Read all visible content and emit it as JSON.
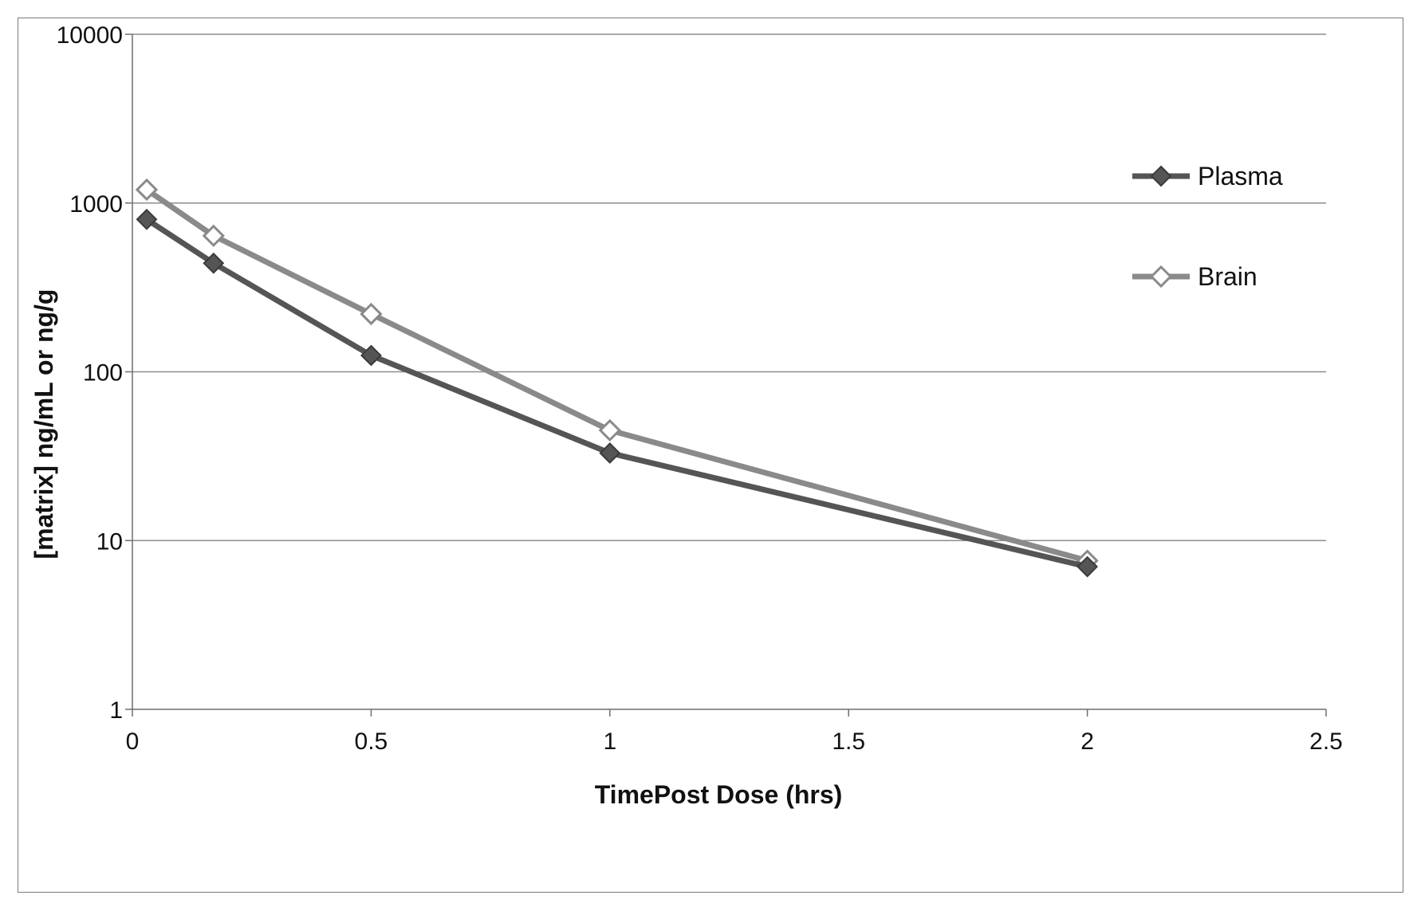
{
  "chart_data": {
    "type": "line",
    "title": "",
    "xlabel": "TimePost Dose (hrs)",
    "ylabel": "[matrix] ng/mL or ng/g",
    "xlim": [
      0,
      2.5
    ],
    "ylim": [
      1,
      10000
    ],
    "yscale": "log",
    "xticks": [
      0,
      0.5,
      1,
      1.5,
      2,
      2.5
    ],
    "xtick_labels": [
      "0",
      "0.5",
      "1",
      "1.5",
      "2",
      "2.5"
    ],
    "yticks": [
      1,
      10,
      100,
      1000,
      10000
    ],
    "ytick_labels": [
      "1",
      "10",
      "100",
      "1000",
      "10000"
    ],
    "grid": "horizontal",
    "legend_position": "right",
    "series": [
      {
        "name": "Plasma",
        "marker": "filled-diamond",
        "color": "#555555",
        "x": [
          0.03,
          0.17,
          0.5,
          1,
          2
        ],
        "y": [
          800,
          440,
          125,
          33,
          7
        ]
      },
      {
        "name": "Brain",
        "marker": "open-diamond",
        "color": "#8a8a8a",
        "x": [
          0.03,
          0.17,
          0.5,
          1,
          2
        ],
        "y": [
          1200,
          640,
          220,
          45,
          7.6
        ]
      }
    ]
  }
}
